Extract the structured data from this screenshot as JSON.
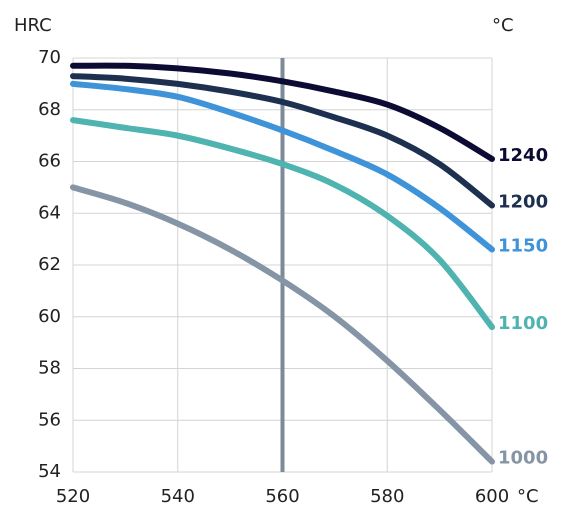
{
  "chart_data": {
    "type": "line",
    "y_label": "HRC",
    "legend_unit": "°C",
    "x_unit": "°C",
    "x": [
      520,
      530,
      540,
      550,
      560,
      570,
      580,
      590,
      600
    ],
    "series": [
      {
        "name": "1240",
        "color": "#0c0b33",
        "values": [
          69.7,
          69.7,
          69.6,
          69.4,
          69.1,
          68.7,
          68.2,
          67.3,
          66.1
        ]
      },
      {
        "name": "1200",
        "color": "#1d3050",
        "values": [
          69.3,
          69.2,
          69.0,
          68.7,
          68.3,
          67.7,
          67.0,
          65.9,
          64.3
        ]
      },
      {
        "name": "1150",
        "color": "#3f93d8",
        "values": [
          69.0,
          68.8,
          68.5,
          67.9,
          67.2,
          66.4,
          65.5,
          64.2,
          62.6
        ]
      },
      {
        "name": "1100",
        "color": "#4fb3b0",
        "values": [
          67.6,
          67.3,
          67.0,
          66.5,
          65.9,
          65.1,
          63.9,
          62.2,
          59.6
        ]
      },
      {
        "name": "1000",
        "color": "#8595a6",
        "values": [
          65.0,
          64.4,
          63.6,
          62.6,
          61.4,
          60.0,
          58.3,
          56.4,
          54.4
        ]
      }
    ],
    "xlim": [
      520,
      600
    ],
    "xticks": [
      520,
      540,
      560,
      580,
      600
    ],
    "ylim": [
      54,
      70
    ],
    "yticks": [
      54,
      56,
      58,
      60,
      62,
      64,
      66,
      68,
      70
    ],
    "reference_x": 560,
    "reference_color": "#7d8a98",
    "grid": true
  }
}
